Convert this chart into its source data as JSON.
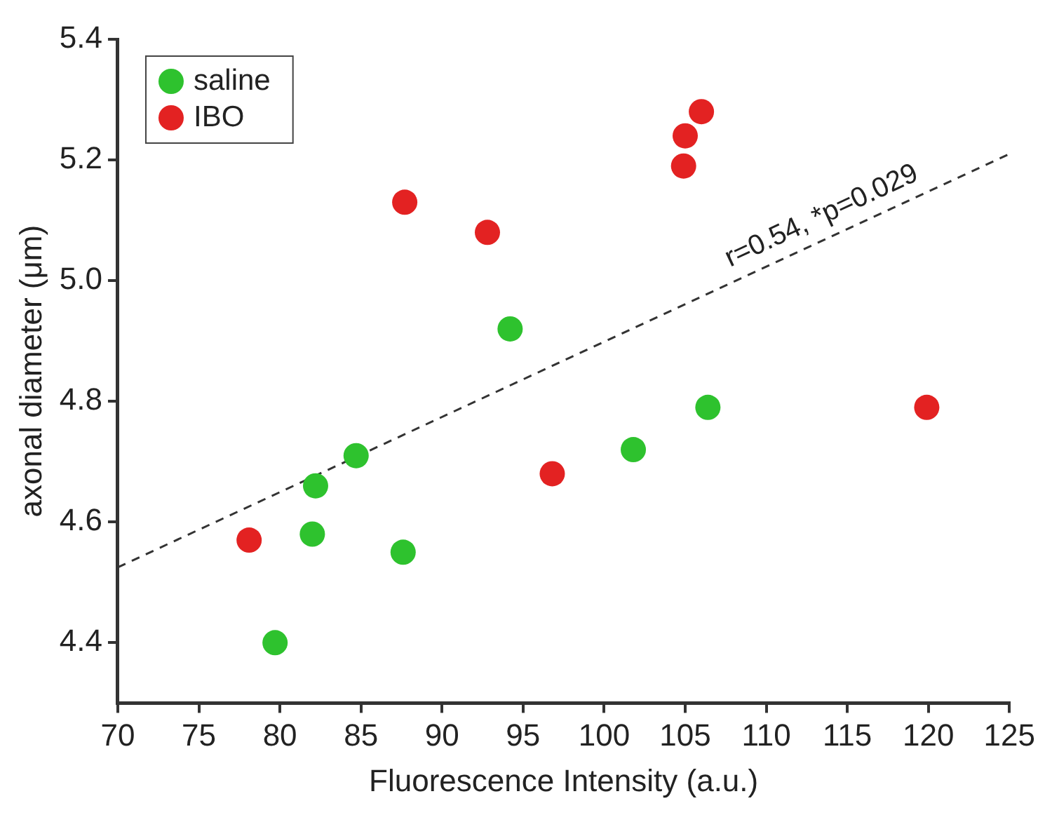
{
  "chart_data": {
    "type": "scatter",
    "xlabel": "Fluorescence Intensity (a.u.)",
    "ylabel": "axonal diameter (μm)",
    "series": [
      {
        "name": "saline",
        "color": "#2ec22e",
        "x": [
          79.7,
          82,
          82.2,
          84.7,
          87.6,
          94.2,
          101.8,
          106.4
        ],
        "values": [
          4.4,
          4.58,
          4.66,
          4.71,
          4.55,
          4.92,
          4.72,
          4.79
        ]
      },
      {
        "name": "IBO",
        "color": "#e32222",
        "x": [
          78.1,
          87.7,
          92.8,
          96.8,
          104.9,
          105,
          106,
          119.9
        ],
        "values": [
          4.57,
          5.13,
          5.08,
          4.68,
          5.19,
          5.24,
          5.28,
          4.79
        ]
      },
      {
        "type": "line",
        "color": "#333333",
        "line_style": "dashed",
        "marker": "none",
        "x": [
          70,
          125
        ],
        "values": [
          4.525,
          5.21
        ]
      }
    ],
    "annotations": [
      "r=0.54, *p=0.029"
    ],
    "xlim": [
      70,
      125
    ],
    "xticks": [
      70,
      75,
      80,
      85,
      90,
      95,
      100,
      105,
      110,
      115,
      120,
      125
    ],
    "ylim": [
      4.3,
      5.4
    ],
    "yticks": [
      4.4,
      4.6,
      4.8,
      {
        "value": 5,
        "label": "5.0"
      },
      5.2,
      5.4
    ],
    "grid": false,
    "legend": "top left",
    "marker": "circle"
  }
}
